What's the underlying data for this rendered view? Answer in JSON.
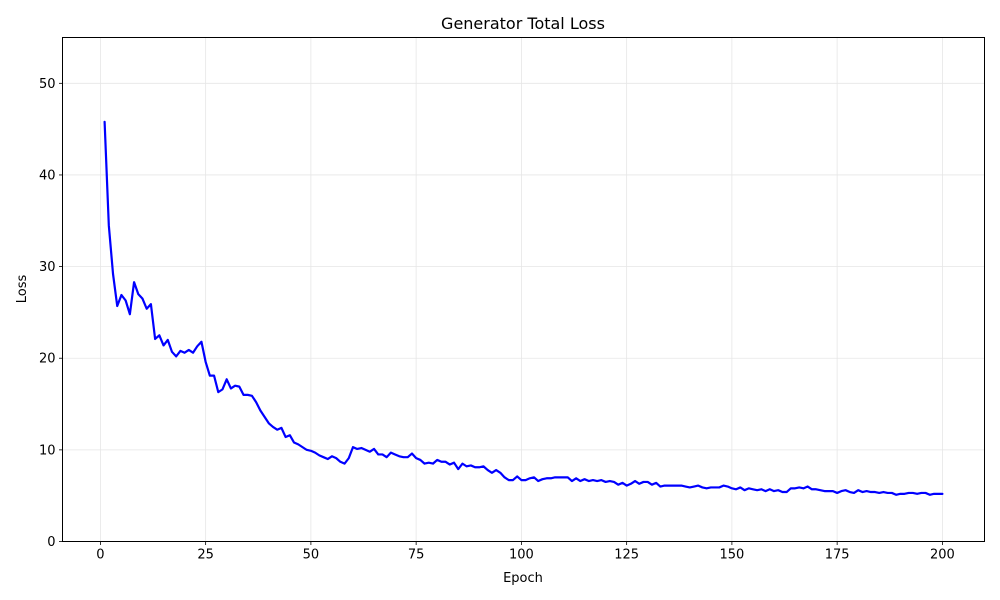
{
  "chart_data": {
    "type": "line",
    "title": "Generator Total Loss",
    "xlabel": "Epoch",
    "ylabel": "Loss",
    "xlim": [
      -9,
      210
    ],
    "ylim": [
      0,
      55
    ],
    "xticks": [
      0,
      25,
      50,
      75,
      100,
      125,
      150,
      175,
      200
    ],
    "yticks": [
      0,
      10,
      20,
      30,
      40,
      50
    ],
    "grid": true,
    "line_color": "#0000ff",
    "series": [
      {
        "x": [
          1,
          2,
          3,
          4,
          5,
          6,
          7,
          8,
          9,
          10,
          11,
          12,
          13,
          14,
          15,
          16,
          17,
          18,
          19,
          20,
          21,
          22,
          23,
          24,
          25,
          26,
          27,
          28,
          29,
          30,
          31,
          32,
          33,
          34,
          35,
          36,
          37,
          38,
          39,
          40,
          41,
          42,
          43,
          44,
          45,
          46,
          47,
          48,
          49,
          50,
          51,
          52,
          53,
          54,
          55,
          56,
          57,
          58,
          59,
          60,
          61,
          62,
          63,
          64,
          65,
          66,
          67,
          68,
          69,
          70,
          71,
          72,
          73,
          74,
          75,
          76,
          77,
          78,
          79,
          80,
          81,
          82,
          83,
          84,
          85,
          86,
          87,
          88,
          89,
          90,
          91,
          92,
          93,
          94,
          95,
          96,
          97,
          98,
          99,
          100,
          101,
          102,
          103,
          104,
          105,
          106,
          107,
          108,
          109,
          110,
          111,
          112,
          113,
          114,
          115,
          116,
          117,
          118,
          119,
          120,
          121,
          122,
          123,
          124,
          125,
          126,
          127,
          128,
          129,
          130,
          131,
          132,
          133,
          134,
          135,
          136,
          137,
          138,
          139,
          140,
          141,
          142,
          143,
          144,
          145,
          146,
          147,
          148,
          149,
          150,
          151,
          152,
          153,
          154,
          155,
          156,
          157,
          158,
          159,
          160,
          161,
          162,
          163,
          164,
          165,
          166,
          167,
          168,
          169,
          170,
          171,
          172,
          173,
          174,
          175,
          176,
          177,
          178,
          179,
          180,
          181,
          182,
          183,
          184,
          185,
          186,
          187,
          188,
          189,
          190,
          191,
          192,
          193,
          194,
          195,
          196,
          197,
          198,
          199,
          200
        ],
        "values": [
          45.8,
          34.5,
          29.2,
          25.7,
          26.9,
          26.3,
          24.8,
          28.3,
          27.0,
          26.5,
          25.4,
          25.9,
          22.1,
          22.5,
          21.4,
          22.0,
          20.7,
          20.2,
          20.8,
          20.6,
          20.9,
          20.6,
          21.3,
          21.8,
          19.6,
          18.1,
          18.1,
          16.3,
          16.6,
          17.7,
          16.7,
          17.0,
          16.9,
          16.0,
          16.0,
          15.9,
          15.2,
          14.3,
          13.6,
          12.9,
          12.5,
          12.2,
          12.4,
          11.4,
          11.6,
          10.8,
          10.6,
          10.3,
          10.0,
          9.9,
          9.7,
          9.4,
          9.2,
          9.0,
          9.3,
          9.1,
          8.7,
          8.5,
          9.1,
          10.3,
          10.1,
          10.2,
          10.0,
          9.8,
          10.1,
          9.5,
          9.5,
          9.2,
          9.7,
          9.5,
          9.3,
          9.2,
          9.2,
          9.6,
          9.1,
          8.9,
          8.5,
          8.6,
          8.5,
          8.9,
          8.7,
          8.7,
          8.4,
          8.6,
          7.9,
          8.5,
          8.2,
          8.3,
          8.1,
          8.1,
          8.2,
          7.8,
          7.5,
          7.8,
          7.5,
          7.0,
          6.7,
          6.7,
          7.1,
          6.7,
          6.7,
          6.9,
          7.0,
          6.6,
          6.8,
          6.9,
          6.9,
          7.0,
          7.0,
          7.0,
          7.0,
          6.6,
          6.9,
          6.6,
          6.8,
          6.6,
          6.7,
          6.6,
          6.7,
          6.5,
          6.6,
          6.5,
          6.2,
          6.4,
          6.1,
          6.3,
          6.6,
          6.3,
          6.5,
          6.5,
          6.2,
          6.4,
          6.0,
          6.1,
          6.1,
          6.1,
          6.1,
          6.1,
          6.0,
          5.9,
          6.0,
          6.1,
          5.9,
          5.8,
          5.9,
          5.9,
          5.9,
          6.1,
          6.0,
          5.8,
          5.7,
          5.9,
          5.6,
          5.8,
          5.7,
          5.6,
          5.7,
          5.5,
          5.7,
          5.5,
          5.6,
          5.4,
          5.4,
          5.8,
          5.8,
          5.9,
          5.8,
          6.0,
          5.7,
          5.7,
          5.6,
          5.5,
          5.5,
          5.5,
          5.3,
          5.5,
          5.6,
          5.4,
          5.3,
          5.6,
          5.4,
          5.5,
          5.4,
          5.4,
          5.3,
          5.4,
          5.3,
          5.3,
          5.1,
          5.2,
          5.2,
          5.3,
          5.3,
          5.2,
          5.3,
          5.3,
          5.1,
          5.2,
          5.2,
          5.2
        ]
      }
    ]
  }
}
